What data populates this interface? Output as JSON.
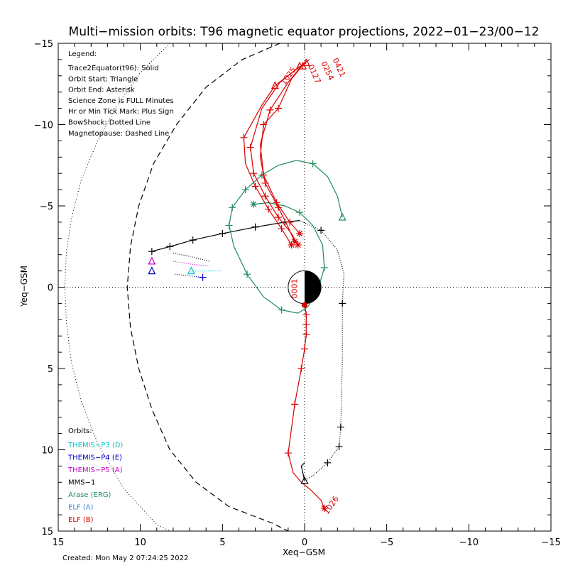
{
  "chart_data": {
    "type": "line",
    "title": "Multi−mission orbits: T96 magnetic equator projections, 2022−01−23/00−12",
    "xlabel": "Xeq−GSM",
    "ylabel": "Yeq−GSM",
    "xlim": [
      15,
      -15
    ],
    "ylim": [
      -15,
      15
    ],
    "x_ticks": [
      15,
      10,
      5,
      0,
      -5,
      -10,
      -15
    ],
    "x_tick_labels": [
      "15",
      "10",
      "5",
      "0",
      "−5",
      "−10",
      "−15"
    ],
    "y_ticks": [
      -15,
      -10,
      -5,
      0,
      5,
      10,
      15
    ],
    "y_tick_labels": [
      "−15",
      "−10",
      "−5",
      "0",
      "5",
      "10",
      "15"
    ],
    "legend_header": "Legend:",
    "legend_lines": [
      "Trace2Equator(t96): Solid",
      "Orbit Start: Triangle",
      "Orbit End: Asterisk",
      "Science Zone is FULL Minutes",
      "Hr or Min Tick Mark: Plus Sign",
      "BowShock: Dotted Line",
      "Magnetopause: Dashed Line"
    ],
    "orbits_header": "Orbits:",
    "orbit_labels": [
      {
        "label": "THEMIS−P3 (D)",
        "color": "#00c8c8"
      },
      {
        "label": "THEMIS−P4 (E)",
        "color": "#0000c8"
      },
      {
        "label": "THEMIS−P5 (A)",
        "color": "#c800c8"
      },
      {
        "label": "MMS−1",
        "color": "#000000"
      },
      {
        "label": "Arase (ERG)",
        "color": "#1e8c5a"
      },
      {
        "label": "ELF (A)",
        "color": "#3c8cdc"
      },
      {
        "label": "ELF (B)",
        "color": "#dc0000"
      }
    ],
    "created_text": "Created: Mon May  2 07:24:25 2022",
    "time_labels": [
      {
        "text": "0421",
        "x": -1.7,
        "y": -14.0,
        "color": "#dc0000"
      },
      {
        "text": "0254",
        "x": -1.0,
        "y": -13.8,
        "color": "#dc0000"
      },
      {
        "text": "0127",
        "x": -0.2,
        "y": -13.6,
        "color": "#dc0000"
      },
      {
        "text": "1025",
        "x": 1.2,
        "y": -12.4,
        "color": "#dc0000"
      },
      {
        "text": "0001",
        "x": 0.45,
        "y": 0.7,
        "color": "#dc0000"
      },
      {
        "text": "1026",
        "x": -1.4,
        "y": 14.0,
        "color": "#dc0000"
      }
    ],
    "bow_shock": {
      "x": [
        8.2,
        10.0,
        11.4,
        12.6,
        13.6,
        14.2,
        14.5,
        14.6,
        14.5,
        14.2,
        13.6,
        12.6,
        11.0,
        9.0,
        8.2
      ],
      "y": [
        -15.0,
        -13.2,
        -11.2,
        -9.0,
        -6.6,
        -4.2,
        -2.2,
        0.0,
        2.2,
        4.6,
        7.0,
        9.6,
        12.4,
        14.6,
        15.0
      ]
    },
    "magnetopause": {
      "x": [
        1.5,
        3.8,
        6.0,
        7.8,
        9.2,
        10.1,
        10.6,
        10.8,
        10.6,
        10.1,
        9.3,
        8.2,
        6.6,
        4.6,
        2.0,
        1.0
      ],
      "y": [
        -15.0,
        -14.0,
        -12.3,
        -10.0,
        -7.6,
        -5.0,
        -2.5,
        0.0,
        2.5,
        5.0,
        7.5,
        10.0,
        12.0,
        13.5,
        14.5,
        15.0
      ]
    },
    "series": [
      {
        "name": "MMS−1",
        "color": "#000000",
        "style": "solid",
        "x": [
          9.3,
          8.2,
          6.8,
          5.0,
          3.0,
          1.2,
          0.3
        ],
        "y": [
          -2.2,
          -2.5,
          -2.9,
          -3.3,
          -3.7,
          -4.0,
          -4.1
        ],
        "ticks": [
          0,
          1,
          2,
          3,
          4,
          5
        ]
      },
      {
        "name": "MMS−1",
        "color": "#000000",
        "style": "dotted",
        "x": [
          0.3,
          -1.0,
          -2.0,
          -2.4,
          -2.3,
          -2.3,
          -2.2,
          -2.1,
          -1.4,
          -0.5,
          0.0
        ],
        "y": [
          -4.1,
          -3.5,
          -2.3,
          -0.8,
          1.0,
          4.6,
          8.6,
          9.8,
          10.8,
          11.6,
          11.9
        ],
        "ticks": [
          1,
          4,
          6,
          7,
          8
        ]
      },
      {
        "name": "MMS−1",
        "color": "#000000",
        "style": "solid",
        "x": [
          0.0,
          0.2,
          0.0
        ],
        "y": [
          11.9,
          11.0,
          10.8
        ],
        "ticks": []
      },
      {
        "name": "Arase (ERG)",
        "color": "#1e8c5a",
        "style": "solid",
        "x": [
          -2.3,
          -2.0,
          -1.4,
          -0.5,
          0.5,
          1.6,
          2.6,
          3.6,
          4.4,
          4.6,
          4.3,
          3.5,
          2.5,
          1.4,
          0.4,
          -0.2,
          -0.8,
          -1.2,
          -1.1,
          -0.5,
          0.3,
          1.2,
          2.2,
          3.1
        ],
        "y": [
          -4.3,
          -5.6,
          -6.8,
          -7.6,
          -7.8,
          -7.5,
          -6.9,
          -6.0,
          -4.9,
          -3.8,
          -2.5,
          -0.8,
          0.6,
          1.4,
          1.6,
          1.2,
          0.2,
          -1.2,
          -2.6,
          -3.8,
          -4.6,
          -5.0,
          -5.2,
          -5.1
        ],
        "ticks": [
          3,
          6,
          7,
          8,
          9,
          11,
          13,
          17,
          20
        ]
      },
      {
        "name": "THEMIS−P3 (D)",
        "color": "#00c8c8",
        "style": "dotted",
        "x": [
          6.9,
          5.6,
          5.0
        ],
        "y": [
          -1.0,
          -1.0,
          -1.0
        ],
        "ticks": []
      },
      {
        "name": "THEMIS−P4 (E)",
        "color": "#0000c8",
        "style": "dotted",
        "x": [
          7.9,
          7.0,
          6.2
        ],
        "y": [
          -0.8,
          -0.7,
          -0.6
        ],
        "ticks": [
          2
        ]
      },
      {
        "name": "THEMIS−P5 (A)",
        "color": "#c800c8",
        "style": "dotted",
        "x": [
          8.0,
          6.8,
          5.8
        ],
        "y": [
          -1.6,
          -1.4,
          -1.3
        ],
        "ticks": []
      },
      {
        "name": "THEMIS−P5 (A)",
        "color": "#000000",
        "style": "dotted",
        "x": [
          8.0,
          7.0,
          5.8
        ],
        "y": [
          -2.1,
          -1.9,
          -1.6
        ],
        "ticks": []
      },
      {
        "name": "ELF (B)",
        "color": "#dc0000",
        "style": "solid",
        "x": [
          0.3,
          0.5,
          1.8,
          2.6,
          3.7,
          3.6,
          3.0,
          2.2,
          1.4,
          0.8
        ],
        "y": [
          -13.6,
          -13.4,
          -12.4,
          -11.2,
          -9.2,
          -7.6,
          -6.2,
          -4.8,
          -3.6,
          -2.6
        ],
        "ticks": [
          4,
          6,
          7,
          8
        ]
      },
      {
        "name": "ELF (B)",
        "color": "#dc0000",
        "style": "solid",
        "x": [
          0.1,
          0.4,
          1.5,
          2.6,
          3.3,
          3.1,
          2.4,
          1.6,
          0.8,
          0.4
        ],
        "y": [
          -13.6,
          -13.5,
          -12.6,
          -11.0,
          -8.6,
          -7.0,
          -5.6,
          -4.3,
          -3.3,
          -2.6
        ],
        "ticks": [
          4,
          5,
          6,
          7
        ]
      },
      {
        "name": "ELF (B)",
        "color": "#dc0000",
        "style": "solid",
        "x": [
          -0.1,
          0.2,
          1.0,
          2.1,
          2.7,
          2.5,
          1.7,
          0.9,
          0.3
        ],
        "y": [
          -13.8,
          -13.6,
          -12.6,
          -10.9,
          -8.8,
          -6.9,
          -5.2,
          -4.0,
          -3.3
        ],
        "ticks": [
          3,
          5,
          6,
          7
        ]
      },
      {
        "name": "ELF (B)",
        "color": "#dc0000",
        "style": "solid",
        "x": [
          -0.3,
          0.0,
          0.8,
          1.6,
          2.5,
          2.7,
          2.4,
          1.6,
          1.1,
          0.6
        ],
        "y": [
          -14.0,
          -13.8,
          -12.8,
          -11.0,
          -10.0,
          -8.0,
          -6.4,
          -4.9,
          -3.9,
          -2.8
        ],
        "ticks": [
          3,
          4,
          6,
          7
        ]
      },
      {
        "name": "ELF (B)",
        "color": "#dc0000",
        "style": "solid",
        "x": [
          0.0,
          -0.1,
          -0.1,
          -0.1,
          0.0,
          0.2,
          0.6,
          1.0,
          0.7,
          0.2,
          -0.3,
          -1.0,
          -1.2
        ],
        "y": [
          1.0,
          1.7,
          2.3,
          2.9,
          3.8,
          5.0,
          7.2,
          10.2,
          11.4,
          12.0,
          12.4,
          13.1,
          13.6
        ],
        "ticks": [
          1,
          2,
          3,
          4,
          5,
          6,
          7
        ]
      }
    ],
    "markers": [
      {
        "symbol": "triangle",
        "x": -2.3,
        "y": -4.3,
        "color": "#1e8c5a"
      },
      {
        "symbol": "asterisk",
        "x": 3.1,
        "y": -5.1,
        "color": "#1e8c5a"
      },
      {
        "symbol": "triangle",
        "x": 9.3,
        "y": -1.6,
        "color": "#c800c8"
      },
      {
        "symbol": "triangle",
        "x": 9.3,
        "y": -1.0,
        "color": "#0000c8"
      },
      {
        "symbol": "triangle",
        "x": 6.9,
        "y": -1.0,
        "color": "#00c8c8"
      },
      {
        "symbol": "triangle",
        "x": 0.0,
        "y": 11.9,
        "color": "#000000"
      },
      {
        "symbol": "triangle",
        "x": 0.3,
        "y": -13.6,
        "color": "#dc0000"
      },
      {
        "symbol": "triangle",
        "x": 0.1,
        "y": -13.6,
        "color": "#dc0000"
      },
      {
        "symbol": "triangle",
        "x": -0.1,
        "y": -13.8,
        "color": "#dc0000"
      },
      {
        "symbol": "triangle",
        "x": 1.8,
        "y": -12.4,
        "color": "#dc0000"
      },
      {
        "symbol": "asterisk",
        "x": 0.8,
        "y": -2.6,
        "color": "#dc0000"
      },
      {
        "symbol": "asterisk",
        "x": 0.4,
        "y": -2.6,
        "color": "#dc0000"
      },
      {
        "symbol": "asterisk",
        "x": 0.3,
        "y": -3.3,
        "color": "#dc0000"
      },
      {
        "symbol": "asterisk",
        "x": 0.6,
        "y": -2.8,
        "color": "#dc0000"
      },
      {
        "symbol": "asterisk",
        "x": -1.2,
        "y": 13.6,
        "color": "#dc0000"
      },
      {
        "symbol": "dot",
        "x": 0.0,
        "y": 1.1,
        "color": "#dc0000"
      }
    ]
  }
}
